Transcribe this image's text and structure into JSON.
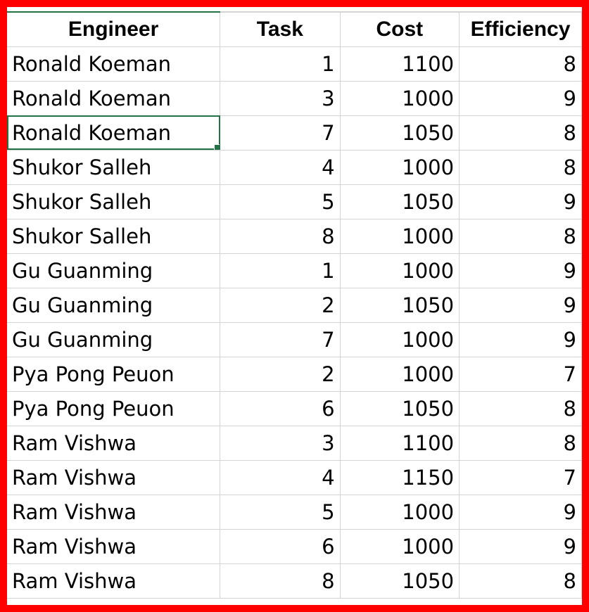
{
  "sheet": {
    "headers": [
      "Engineer",
      "Task",
      "Cost",
      "Efficiency"
    ],
    "rows": [
      [
        "Ronald Koeman",
        "1",
        "1100",
        "8"
      ],
      [
        "Ronald Koeman",
        "3",
        "1000",
        "9"
      ],
      [
        "Ronald Koeman",
        "7",
        "1050",
        "8"
      ],
      [
        "Shukor Salleh",
        "4",
        "1000",
        "8"
      ],
      [
        "Shukor Salleh",
        "5",
        "1050",
        "9"
      ],
      [
        "Shukor Salleh",
        "8",
        "1000",
        "8"
      ],
      [
        "Gu Guanming",
        "1",
        "1000",
        "9"
      ],
      [
        "Gu Guanming",
        "2",
        "1050",
        "9"
      ],
      [
        "Gu Guanming",
        "7",
        "1000",
        "9"
      ],
      [
        "Pya Pong Peuon",
        "2",
        "1000",
        "7"
      ],
      [
        "Pya Pong Peuon",
        "6",
        "1050",
        "8"
      ],
      [
        "Ram Vishwa",
        "3",
        "1100",
        "8"
      ],
      [
        "Ram Vishwa",
        "4",
        "1150",
        "7"
      ],
      [
        "Ram Vishwa",
        "5",
        "1000",
        "9"
      ],
      [
        "Ram Vishwa",
        "6",
        "1000",
        "9"
      ],
      [
        "Ram Vishwa",
        "8",
        "1050",
        "8"
      ]
    ],
    "selected_cell": {
      "row": 2,
      "col": 0
    },
    "colors": {
      "frame": "#ff0000",
      "selection": "#217346",
      "gridline": "#d4d4d4"
    }
  }
}
